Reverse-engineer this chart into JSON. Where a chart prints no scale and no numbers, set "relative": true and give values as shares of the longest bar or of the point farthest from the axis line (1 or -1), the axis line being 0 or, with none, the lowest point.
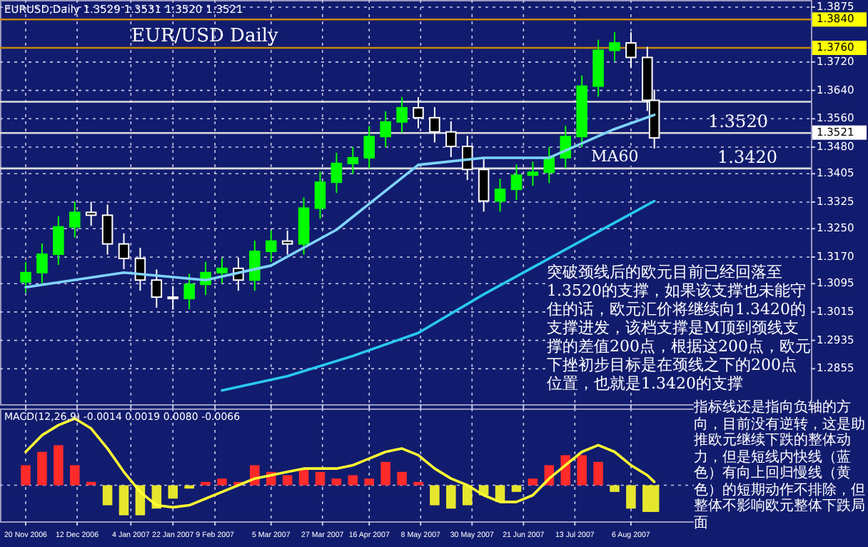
{
  "chart_data": [
    {
      "type": "candlestick",
      "title": "EUR/USD Daily",
      "subtitle": "EURUSD,Daily  1.3529 1.3531 1.3520 1.3521",
      "x": [
        "2006-11-20",
        "2006-11-27",
        "2006-12-04",
        "2006-12-11",
        "2006-12-18",
        "2006-12-25",
        "2007-01-01",
        "2007-01-08",
        "2007-01-15",
        "2007-01-22",
        "2007-01-29",
        "2007-02-05",
        "2007-02-12",
        "2007-02-19",
        "2007-02-26",
        "2007-03-05",
        "2007-03-12",
        "2007-03-19",
        "2007-03-26",
        "2007-04-02",
        "2007-04-09",
        "2007-04-16",
        "2007-04-23",
        "2007-04-30",
        "2007-05-07",
        "2007-05-14",
        "2007-05-21",
        "2007-05-28",
        "2007-06-04",
        "2007-06-11",
        "2007-06-18",
        "2007-06-25",
        "2007-07-02",
        "2007-07-09",
        "2007-07-16",
        "2007-07-23",
        "2007-07-30",
        "2007-08-06",
        "2007-08-13",
        "2007-08-16"
      ],
      "ohlc": [
        [
          1.31,
          1.3156,
          1.307,
          1.3126
        ],
        [
          1.3126,
          1.3208,
          1.3096,
          1.3178
        ],
        [
          1.3178,
          1.3285,
          1.3148,
          1.3255
        ],
        [
          1.3255,
          1.3326,
          1.3225,
          1.3296
        ],
        [
          1.3296,
          1.3326,
          1.3258,
          1.3288
        ],
        [
          1.3288,
          1.3318,
          1.3177,
          1.3207
        ],
        [
          1.3207,
          1.3237,
          1.3136,
          1.3166
        ],
        [
          1.3166,
          1.3196,
          1.3075,
          1.3105
        ],
        [
          1.3105,
          1.3135,
          1.3027,
          1.3057
        ],
        [
          1.3057,
          1.3087,
          1.3023,
          1.3053
        ],
        [
          1.3053,
          1.3123,
          1.3023,
          1.3093
        ],
        [
          1.3093,
          1.3156,
          1.3063,
          1.3126
        ],
        [
          1.3126,
          1.3168,
          1.3096,
          1.3138
        ],
        [
          1.3138,
          1.3168,
          1.3075,
          1.3105
        ],
        [
          1.3105,
          1.3216,
          1.3075,
          1.3186
        ],
        [
          1.3186,
          1.3245,
          1.3156,
          1.3215
        ],
        [
          1.3215,
          1.3245,
          1.3177,
          1.3207
        ],
        [
          1.3207,
          1.3338,
          1.3177,
          1.3308
        ],
        [
          1.3308,
          1.3411,
          1.3278,
          1.3381
        ],
        [
          1.3381,
          1.3464,
          1.3351,
          1.3434
        ],
        [
          1.3434,
          1.348,
          1.3404,
          1.345
        ],
        [
          1.345,
          1.354,
          1.342,
          1.351
        ],
        [
          1.351,
          1.3581,
          1.348,
          1.3551
        ],
        [
          1.3551,
          1.3621,
          1.3521,
          1.3591
        ],
        [
          1.3591,
          1.3621,
          1.3533,
          1.3563
        ],
        [
          1.3563,
          1.3593,
          1.3493,
          1.3523
        ],
        [
          1.3523,
          1.3553,
          1.3452,
          1.3482
        ],
        [
          1.3482,
          1.3512,
          1.3387,
          1.3417
        ],
        [
          1.3417,
          1.3447,
          1.3298,
          1.3328
        ],
        [
          1.3328,
          1.3391,
          1.3298,
          1.3361
        ],
        [
          1.3361,
          1.3431,
          1.3331,
          1.3401
        ],
        [
          1.3401,
          1.3439,
          1.3371,
          1.3409
        ],
        [
          1.3409,
          1.348,
          1.3379,
          1.345
        ],
        [
          1.345,
          1.354,
          1.342,
          1.351
        ],
        [
          1.351,
          1.3682,
          1.348,
          1.3652
        ],
        [
          1.3652,
          1.3783,
          1.3622,
          1.3753
        ],
        [
          1.3753,
          1.3804,
          1.3723,
          1.3774
        ],
        [
          1.3774,
          1.3804,
          1.3703,
          1.3733
        ],
        [
          1.3733,
          1.3763,
          1.3582,
          1.3612
        ],
        [
          1.3612,
          1.3642,
          1.3476,
          1.3506
        ]
      ],
      "colors": [
        "#00ff00",
        "#00ff00",
        "#00ff00",
        "#00ff00",
        "#ffffff",
        "#ffffff",
        "#ffffff",
        "#ffffff",
        "#ffffff",
        "#ffffff",
        "#00ff00",
        "#00ff00",
        "#00ff00",
        "#ffffff",
        "#00ff00",
        "#00ff00",
        "#ffffff",
        "#00ff00",
        "#00ff00",
        "#00ff00",
        "#00ff00",
        "#00ff00",
        "#00ff00",
        "#00ff00",
        "#ffffff",
        "#ffffff",
        "#ffffff",
        "#ffffff",
        "#ffffff",
        "#00ff00",
        "#00ff00",
        "#00ff00",
        "#00ff00",
        "#00ff00",
        "#00ff00",
        "#00ff00",
        "#00ff00",
        "#ffffff",
        "#ffffff",
        "#ffffff"
      ],
      "series": [
        {
          "type": "line",
          "color": "#29c8f0",
          "x": [
            "2007-02-12",
            "2007-03-12",
            "2007-04-09",
            "2007-05-07",
            "2007-06-04",
            "2007-07-02",
            "2007-07-30",
            "2007-08-16"
          ],
          "values": [
            1.2794,
            1.2834,
            1.2891,
            1.2956,
            1.3065,
            1.3166,
            1.3267,
            1.3328
          ]
        },
        {
          "type": "line",
          "color": "#7fd4ff",
          "x": [
            "2006-11-20",
            "2007-01-01",
            "2007-02-05",
            "2007-03-05",
            "2007-04-02",
            "2007-05-07",
            "2007-06-04",
            "2007-07-02",
            "2007-07-30",
            "2007-08-16"
          ],
          "values": [
            1.3085,
            1.3126,
            1.3105,
            1.3146,
            1.3247,
            1.343,
            1.345,
            1.345,
            1.3531,
            1.3571
          ]
        }
      ],
      "xlim": [
        "2006-11-09",
        "2007-10-22"
      ],
      "xticks": [
        {
          "value": "2006-11-20",
          "label": null
        },
        {
          "value": "2006-12-12",
          "label": null
        },
        {
          "value": "2007-01-04",
          "label": null
        },
        {
          "value": "2007-01-22",
          "label": null
        },
        {
          "value": "2007-02-09",
          "label": null
        },
        {
          "value": "2007-03-05",
          "label": null
        },
        {
          "value": "2007-03-27",
          "label": null
        },
        {
          "value": "2007-04-16",
          "label": null
        },
        {
          "value": "2007-05-08",
          "label": null
        },
        {
          "value": "2007-05-30",
          "label": null
        },
        {
          "value": "2007-06-21",
          "label": null
        },
        {
          "value": "2007-07-13",
          "label": null
        },
        {
          "value": "2007-08-06",
          "label": null
        }
      ],
      "ylim": [
        1.2755,
        1.3895
      ],
      "yticks": [
        1.3875,
        {
          "value": 1.372,
          "label": "1.3720"
        },
        {
          "value": 1.364,
          "label": "1.3640"
        },
        {
          "value": 1.356,
          "label": "1.3560"
        },
        {
          "value": 1.348,
          "label": "1.3480"
        },
        1.3405,
        1.3325,
        {
          "value": 1.325,
          "label": "1.3250"
        },
        {
          "value": 1.317,
          "label": "1.3170"
        },
        1.3095,
        1.3015,
        1.2935,
        1.2855
      ],
      "tick_labels": "y",
      "grid": true,
      "ref_lines": [
        {
          "axis": "y",
          "value": 1.384,
          "label": "1.3840",
          "color": "#c8860a"
        },
        {
          "axis": "y",
          "value": 1.376,
          "label": "1.3760",
          "color": "#c8860a"
        },
        {
          "axis": "y",
          "value": 1.3608,
          "color": "#dddddd"
        },
        {
          "axis": "y",
          "value": 1.352,
          "color": "#dddddd"
        },
        {
          "axis": "y",
          "value": 1.342,
          "color": "#dddddd"
        }
      ],
      "annotations": [
        "突破颈线后的欧元目前已经回落至1.3520的支撑，如果该支撑也未能守住的话，欧元汇价将继续向1.3420的支撑进发，该档支撑是M顶到颈线支撑的差值200点，根据这200点，欧元下挫初步目标是在颈线之下的200点位置，也就是1.3420的支撑",
        {
          "text": "1.3520",
          "x": "2007-09-08",
          "y": 1.352
        },
        {
          "text": "1.3420",
          "x": "2007-09-12",
          "y": 1.342
        },
        "MA60",
        {
          "text": "1.3521",
          "x": "2007-10-22",
          "y": 1.3521
        }
      ]
    },
    {
      "type": "bar",
      "title": "MACD(12,26,9) -0.0014 0.0019 0.0080 -0.0066",
      "relative": true,
      "x": [
        "2006-11-20",
        "2006-11-27",
        "2006-12-04",
        "2006-12-11",
        "2006-12-18",
        "2006-12-25",
        "2007-01-01",
        "2007-01-08",
        "2007-01-15",
        "2007-01-22",
        "2007-01-29",
        "2007-02-05",
        "2007-02-12",
        "2007-02-19",
        "2007-02-26",
        "2007-03-05",
        "2007-03-12",
        "2007-03-19",
        "2007-03-26",
        "2007-04-02",
        "2007-04-09",
        "2007-04-16",
        "2007-04-23",
        "2007-04-30",
        "2007-05-07",
        "2007-05-14",
        "2007-05-21",
        "2007-05-28",
        "2007-06-04",
        "2007-06-11",
        "2007-06-18",
        "2007-06-25",
        "2007-07-02",
        "2007-07-09",
        "2007-07-16",
        "2007-07-23",
        "2007-07-30",
        "2007-08-06",
        "2007-08-13",
        "2007-08-16"
      ],
      "series": [
        {
          "type": "bar",
          "colors": [
            "#ff2a2a",
            "#ff2a2a",
            "#ff2a2a",
            "#ff2a2a",
            "#ff2a2a",
            "#e6e62e",
            "#e6e62e",
            "#e6e62e",
            "#e6e62e",
            "#e6e62e",
            "#e6e62e",
            "#ff2a2a",
            "#ff2a2a",
            "#ff2a2a",
            "#ff2a2a",
            "#ff2a2a",
            "#ff2a2a",
            "#ff2a2a",
            "#ff2a2a",
            "#ff2a2a",
            "#ff2a2a",
            "#ff2a2a",
            "#ff2a2a",
            "#ff2a2a",
            "#ff2a2a",
            "#e6e62e",
            "#e6e62e",
            "#e6e62e",
            "#e6e62e",
            "#e6e62e",
            "#e6e62e",
            "#ff2a2a",
            "#ff2a2a",
            "#ff2a2a",
            "#ff2a2a",
            "#ff2a2a",
            "#e6e62e",
            "#e6e62e",
            "#e6e62e",
            "#e6e62e"
          ],
          "values": [
            0.3,
            0.5,
            0.6,
            0.3,
            0.05,
            -0.3,
            -0.45,
            -0.45,
            -0.35,
            -0.2,
            -0.05,
            0.05,
            0.1,
            0.05,
            0.3,
            0.2,
            0.15,
            0.25,
            0.2,
            0.1,
            0.15,
            0.1,
            0.35,
            0.2,
            0.05,
            -0.3,
            -0.35,
            -0.3,
            -0.15,
            -0.25,
            -0.1,
            0.1,
            0.3,
            0.45,
            0.45,
            0.35,
            -0.1,
            -0.35,
            -0.4,
            -0.4
          ]
        },
        {
          "type": "line",
          "color": "#ffff33",
          "values": [
            0.5,
            0.75,
            0.9,
            1.0,
            0.85,
            0.55,
            0.2,
            -0.1,
            -0.3,
            -0.33,
            -0.3,
            -0.2,
            -0.1,
            0,
            0.1,
            0.15,
            0.2,
            0.25,
            0.25,
            0.25,
            0.3,
            0.4,
            0.5,
            0.55,
            0.45,
            0.25,
            0.1,
            0,
            -0.15,
            -0.25,
            -0.25,
            -0.15,
            0.1,
            0.3,
            0.5,
            0.6,
            0.5,
            0.3,
            0.15,
            0.05
          ]
        }
      ],
      "xlim": [
        "2006-11-09",
        "2007-10-22"
      ],
      "xticks": [
        {
          "value": "2006-11-20",
          "label": "20 Nov 2006"
        },
        {
          "value": "2006-12-12",
          "label": "12 Dec 2006"
        },
        {
          "value": "2007-01-04",
          "label": "4 Jan 2007"
        },
        {
          "value": "2007-01-22",
          "label": "22 Jan 2007"
        },
        {
          "value": "2007-02-09",
          "label": "9 Feb 2007"
        },
        {
          "value": "2007-03-05",
          "label": "5 Mar 2007"
        },
        {
          "value": "2007-03-27",
          "label": "27 Mar 2007"
        },
        {
          "value": "2007-04-16",
          "label": "16 Apr 2007"
        },
        {
          "value": "2007-05-08",
          "label": "8 May 2007"
        },
        {
          "value": "2007-05-30",
          "label": "30 May 2007"
        },
        {
          "value": "2007-06-21",
          "label": "21 Jun 2007"
        },
        {
          "value": "2007-07-13",
          "label": "13 Jul 2007"
        },
        {
          "value": "2007-08-06",
          "label": "6 Aug 2007"
        }
      ],
      "tick_labels": "x",
      "grid": true,
      "annotations": [
        "指标线还是指向负轴的方向，目前没有逆转，这是助推欧元继续下跌的整体动力，但是短线内快线（蓝色）有向上回归慢线（黄色）的短期动作不排除，但整体不影响欧元整体下跌局面"
      ]
    }
  ]
}
